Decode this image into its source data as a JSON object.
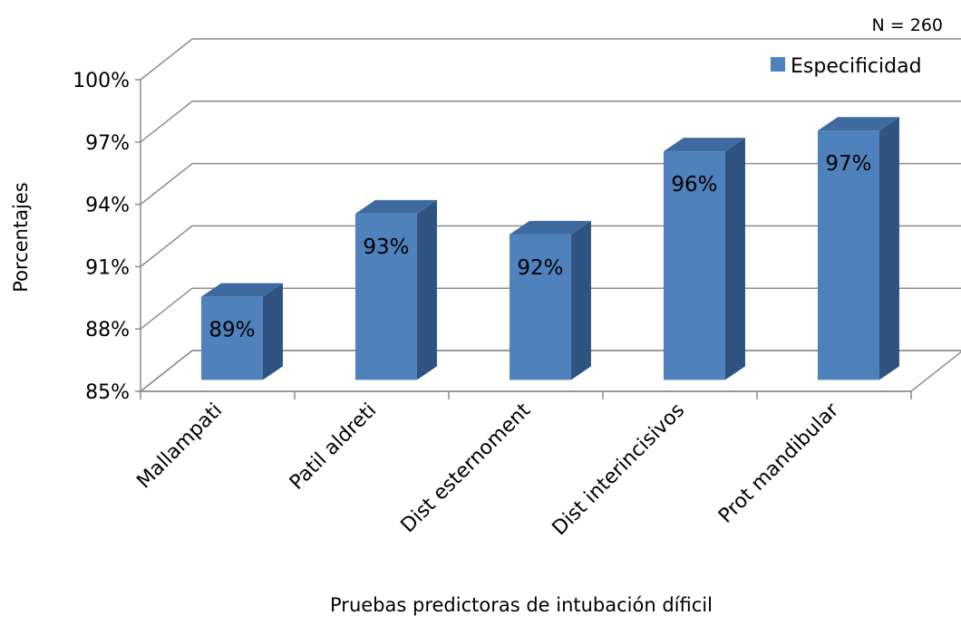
{
  "chart_data": {
    "type": "bar",
    "style": "3d-column",
    "note": "N = 260",
    "title": "",
    "xlabel": "Pruebas predictoras de intubación díficil",
    "ylabel": "Porcentajes",
    "ylim": [
      85,
      100
    ],
    "yticks": [
      85,
      88,
      91,
      94,
      97,
      100
    ],
    "ytick_labels": [
      "85%",
      "88%",
      "91%",
      "94%",
      "97%",
      "100%"
    ],
    "categories": [
      "Mallampati",
      "Patil aldreti",
      "Dist esternoment",
      "Dist interincisivos",
      "Prot mandibular"
    ],
    "series": [
      {
        "name": "Especificidad",
        "values": [
          89,
          93,
          92,
          96,
          97
        ],
        "labels": [
          "89%",
          "93%",
          "92%",
          "96%",
          "97%"
        ],
        "color": "#4f81bd"
      }
    ],
    "grid": true,
    "legend": "top-right"
  }
}
